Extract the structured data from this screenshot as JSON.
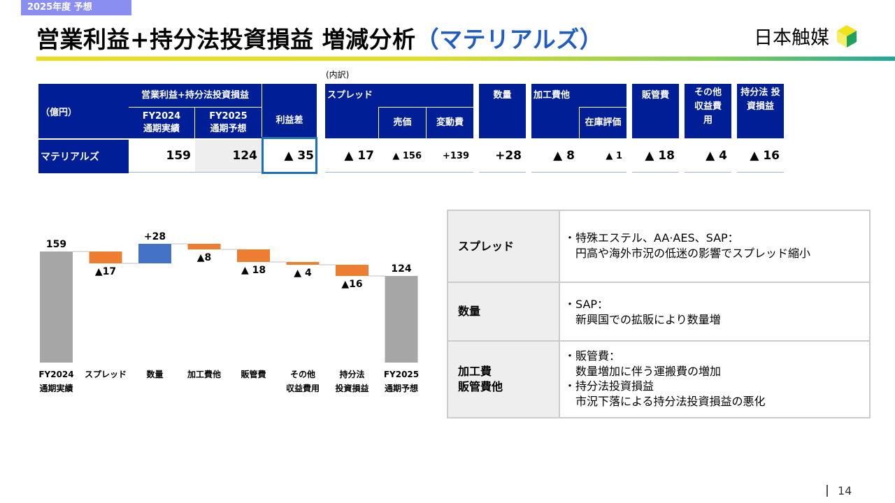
{
  "header": {
    "tag": "2025年度 予想",
    "title_main": "営業利益+持分法投資損益 増減分析",
    "title_sub": "（マテリアルズ）",
    "logo_text": "日本触媒"
  },
  "table": {
    "note": "(内訳)",
    "unit_label": "（億円）",
    "group_label": "営業利益+持分法投資損益",
    "col_fy2024": "FY2024 通期実績",
    "col_fy2025": "FY2025 通期予想",
    "col_diff": "利益差",
    "col_spread": "スプレッド",
    "col_price": "売価",
    "col_varcost": "変動費",
    "col_volume": "数量",
    "col_processing": "加工費他",
    "col_inventory": "在庫評価",
    "col_sga": "販管費",
    "col_other": "その他 収益費用",
    "col_equity": "持分法 投資損益",
    "row_label": "マテリアルズ",
    "values": {
      "fy2024": "159",
      "fy2025": "124",
      "diff": "▲ 35",
      "spread": "▲ 17",
      "price": "▲ 156",
      "varcost": "+139",
      "volume": "+28",
      "processing": "▲ 8",
      "inventory": "▲ 1",
      "sga": "▲ 18",
      "other": "▲ 4",
      "equity": "▲ 16"
    }
  },
  "chart_data": {
    "type": "bar",
    "subtype": "waterfall",
    "categories": [
      "FY2024 通期実績",
      "スプレッド",
      "数量",
      "加工費他",
      "販管費",
      "その他 収益費用",
      "持分法 投資損益",
      "FY2025 通期予想"
    ],
    "category_lines": [
      [
        "FY2024",
        "通期実績"
      ],
      [
        "スプレッド"
      ],
      [
        "数量"
      ],
      [
        "加工費他"
      ],
      [
        "販管費"
      ],
      [
        "その他",
        "収益費用"
      ],
      [
        "持分法",
        "投資損益"
      ],
      [
        "FY2025",
        "通期予想"
      ]
    ],
    "values": [
      159,
      -17,
      28,
      -8,
      -18,
      -4,
      -16,
      124
    ],
    "kinds": [
      "total",
      "delta",
      "delta",
      "delta",
      "delta",
      "delta",
      "delta",
      "total"
    ],
    "labels": [
      "159",
      "▲17",
      "+28",
      "▲8",
      "▲ 18",
      "▲ 4",
      "▲16",
      "124"
    ],
    "colors": {
      "total": "#a6a6a6",
      "increase": "#4472c4",
      "decrease": "#ed7d31"
    }
  },
  "info": {
    "rows": [
      {
        "head": [
          "スプレッド"
        ],
        "lines": [
          "・特殊エステル、AA·AES、SAP：",
          "　円高や海外市況の低迷の影響でスプレッド縮小"
        ]
      },
      {
        "head": [
          "数量"
        ],
        "lines": [
          "・SAP：",
          "　新興国での拡販により数量増"
        ]
      },
      {
        "head": [
          "加工費",
          "販管費他"
        ],
        "lines": [
          "・販管費：",
          "　数量増加に伴う運搬費の増加",
          "・持分法投資損益",
          "　市況下落による持分法投資損益の悪化"
        ]
      }
    ]
  },
  "page": {
    "number": "14"
  }
}
